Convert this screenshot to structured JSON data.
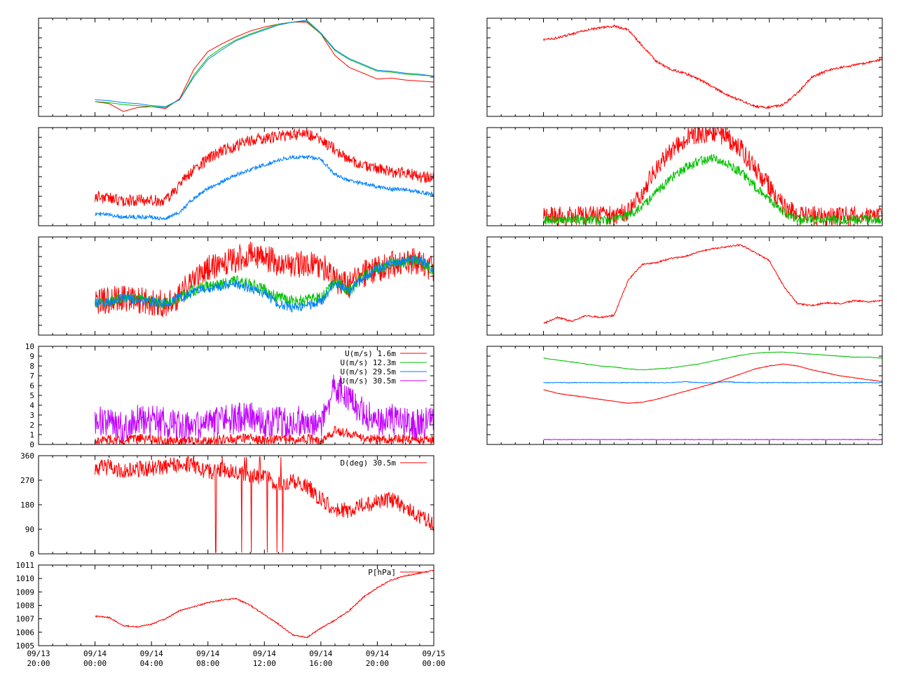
{
  "x_axis": {
    "ticks": [
      {
        "date": "09/13",
        "time": "20:00"
      },
      {
        "date": "09/14",
        "time": "00:00"
      },
      {
        "date": "09/14",
        "time": "04:00"
      },
      {
        "date": "09/14",
        "time": "08:00"
      },
      {
        "date": "09/14",
        "time": "12:00"
      },
      {
        "date": "09/14",
        "time": "16:00"
      },
      {
        "date": "09/14",
        "time": "20:00"
      },
      {
        "date": "09/15",
        "time": "00:00"
      }
    ],
    "range": [
      "09/13 20:00",
      "09/15 00:00"
    ]
  },
  "colors": {
    "red": "#ff0000",
    "green": "#00c000",
    "blue": "#0080ff",
    "purple": "#c000ff"
  },
  "chart_data": [
    {
      "id": "p1",
      "type": "line",
      "title": "",
      "xlabel": "",
      "ylabel": "",
      "x": [
        "09/14 00:00",
        "09/14 01:00",
        "09/14 02:00",
        "09/14 03:00",
        "09/14 04:00",
        "09/14 05:00",
        "09/14 06:00",
        "09/14 07:00",
        "09/14 08:00",
        "09/14 09:00",
        "09/14 10:00",
        "09/14 11:00",
        "09/14 12:00",
        "09/14 13:00",
        "09/14 14:00",
        "09/14 15:00",
        "09/14 16:00",
        "09/14 17:00",
        "09/14 18:00",
        "09/14 19:00",
        "09/14 20:00",
        "09/14 21:00",
        "09/14 22:00",
        "09/14 23:00",
        "09/15 00:00"
      ],
      "ylim": [
        0,
        100
      ],
      "series": [
        {
          "color": "#ff0000",
          "values": [
            15,
            13,
            5,
            9,
            10,
            8,
            18,
            48,
            66,
            74,
            81,
            87,
            91,
            94,
            96,
            96,
            84,
            62,
            50,
            44,
            38,
            39,
            37,
            36,
            35
          ]
        },
        {
          "color": "#00c000",
          "values": [
            15,
            14,
            12,
            11,
            10,
            9,
            17,
            42,
            60,
            70,
            78,
            84,
            89,
            94,
            96,
            97,
            84,
            67,
            58,
            52,
            46,
            45,
            43,
            42,
            41
          ]
        },
        {
          "color": "#0080ff",
          "values": [
            17,
            16,
            14,
            13,
            11,
            10,
            17,
            40,
            58,
            68,
            77,
            83,
            88,
            93,
            96,
            98,
            85,
            68,
            59,
            53,
            47,
            46,
            44,
            43,
            41
          ]
        }
      ]
    },
    {
      "id": "p2",
      "type": "line",
      "title": "",
      "xlabel": "",
      "ylabel": "",
      "x": [
        "09/14 00:00",
        "09/14 01:00",
        "09/14 02:00",
        "09/14 03:00",
        "09/14 04:00",
        "09/14 05:00",
        "09/14 06:00",
        "09/14 07:00",
        "09/14 08:00",
        "09/14 09:00",
        "09/14 10:00",
        "09/14 11:00",
        "09/14 12:00",
        "09/14 13:00",
        "09/14 14:00",
        "09/14 15:00",
        "09/14 16:00",
        "09/14 17:00",
        "09/14 18:00",
        "09/14 19:00",
        "09/14 20:00",
        "09/14 21:00",
        "09/14 22:00",
        "09/14 23:00",
        "09/15 00:00"
      ],
      "ylim": [
        0,
        100
      ],
      "series": [
        {
          "color": "#ff0000",
          "noise": 6,
          "values": [
            30,
            28,
            25,
            26,
            26,
            25,
            42,
            57,
            68,
            76,
            82,
            87,
            89,
            91,
            93,
            93,
            87,
            78,
            66,
            62,
            58,
            54,
            54,
            50,
            48
          ]
        },
        {
          "color": "#0080ff",
          "noise": 2,
          "values": [
            12,
            11,
            9,
            9,
            9,
            7,
            14,
            28,
            38,
            45,
            52,
            57,
            62,
            67,
            70,
            70,
            68,
            52,
            46,
            43,
            40,
            37,
            37,
            34,
            32
          ]
        }
      ]
    },
    {
      "id": "p3",
      "type": "line",
      "title": "",
      "xlabel": "",
      "ylabel": "",
      "x": [
        "09/14 00:00",
        "09/14 01:00",
        "09/14 02:00",
        "09/14 03:00",
        "09/14 04:00",
        "09/14 05:00",
        "09/14 06:00",
        "09/14 07:00",
        "09/14 08:00",
        "09/14 09:00",
        "09/14 10:00",
        "09/14 11:00",
        "09/14 12:00",
        "09/14 13:00",
        "09/14 14:00",
        "09/14 15:00",
        "09/14 16:00",
        "09/14 17:00",
        "09/14 18:00",
        "09/14 19:00",
        "09/14 20:00",
        "09/14 21:00",
        "09/14 22:00",
        "09/14 23:00",
        "09/15 00:00"
      ],
      "ylim": [
        0,
        100
      ],
      "series": [
        {
          "color": "#ff0000",
          "noise": 14,
          "values": [
            32,
            36,
            38,
            36,
            34,
            32,
            40,
            58,
            68,
            72,
            78,
            82,
            80,
            72,
            70,
            74,
            72,
            55,
            50,
            62,
            66,
            72,
            75,
            76,
            66
          ]
        },
        {
          "color": "#00c000",
          "noise": 6,
          "values": [
            32,
            34,
            38,
            36,
            34,
            32,
            38,
            46,
            50,
            52,
            55,
            52,
            46,
            38,
            35,
            36,
            38,
            55,
            45,
            60,
            68,
            73,
            75,
            76,
            66
          ]
        },
        {
          "color": "#0080ff",
          "noise": 5,
          "values": [
            32,
            34,
            38,
            36,
            34,
            32,
            38,
            44,
            48,
            50,
            52,
            48,
            42,
            32,
            28,
            30,
            33,
            54,
            44,
            58,
            68,
            73,
            76,
            77,
            66
          ]
        }
      ]
    },
    {
      "id": "p4",
      "type": "line",
      "title": "",
      "xlabel": "",
      "ylabel": "",
      "x": [
        "09/14 00:00",
        "09/14 01:00",
        "09/14 02:00",
        "09/14 03:00",
        "09/14 04:00",
        "09/14 05:00",
        "09/14 06:00",
        "09/14 07:00",
        "09/14 08:00",
        "09/14 09:00",
        "09/14 10:00",
        "09/14 11:00",
        "09/14 12:00",
        "09/14 13:00",
        "09/14 14:00",
        "09/14 15:00",
        "09/14 16:00",
        "09/14 17:00",
        "09/14 18:00",
        "09/14 19:00",
        "09/14 20:00",
        "09/14 21:00",
        "09/14 22:00",
        "09/14 23:00",
        "09/15 00:00"
      ],
      "ylim": [
        0,
        10
      ],
      "yticks": [
        "0",
        "1",
        "2",
        "3",
        "4",
        "5",
        "6",
        "7",
        "8",
        "9",
        "10"
      ],
      "legend": [
        {
          "label": "U(m/s)  1.6m",
          "color": "#ff0000"
        },
        {
          "label": "U(m/s) 12.3m",
          "color": "#00c000"
        },
        {
          "label": "U(m/s) 29.5m",
          "color": "#0080ff"
        },
        {
          "label": "U(m/s) 30.5m",
          "color": "#c000ff"
        }
      ],
      "series": [
        {
          "color": "#c000ff",
          "noise": 1.6,
          "values": [
            2.4,
            2.2,
            1.6,
            2.6,
            2.4,
            2.2,
            1.8,
            1.6,
            2.2,
            2.4,
            2.6,
            2.8,
            2.0,
            2.4,
            2.2,
            2.6,
            2.0,
            6.0,
            5.0,
            3.2,
            2.4,
            2.6,
            2.2,
            2.0,
            2.4
          ]
        },
        {
          "color": "#ff0000",
          "noise": 0.5,
          "values": [
            0.3,
            0.5,
            0.4,
            0.6,
            0.5,
            0.4,
            0.3,
            0.3,
            0.4,
            0.5,
            0.6,
            0.7,
            0.4,
            0.6,
            0.5,
            0.6,
            0.4,
            1.4,
            1.1,
            0.6,
            0.5,
            0.6,
            0.5,
            0.4,
            0.5
          ]
        }
      ]
    },
    {
      "id": "p5",
      "type": "line",
      "title": "",
      "xlabel": "",
      "ylabel": "",
      "x": [
        "09/14 00:00",
        "09/14 01:00",
        "09/14 02:00",
        "09/14 03:00",
        "09/14 04:00",
        "09/14 05:00",
        "09/14 06:00",
        "09/14 07:00",
        "09/14 08:00",
        "09/14 09:00",
        "09/14 10:00",
        "09/14 11:00",
        "09/14 12:00",
        "09/14 13:00",
        "09/14 14:00",
        "09/14 15:00",
        "09/14 16:00",
        "09/14 17:00",
        "09/14 18:00",
        "09/14 19:00",
        "09/14 20:00",
        "09/14 21:00",
        "09/14 22:00",
        "09/14 23:00",
        "09/15 00:00"
      ],
      "ylim": [
        0,
        360
      ],
      "yticks": [
        "0",
        "90",
        "180",
        "270",
        "360"
      ],
      "legend": [
        {
          "label": "D(deg)  30.5m",
          "color": "#ff0000"
        }
      ],
      "series": [
        {
          "color": "#ff0000",
          "noise": 30,
          "spikes": true,
          "values": [
            310,
            320,
            300,
            310,
            315,
            320,
            330,
            325,
            300,
            310,
            300,
            290,
            280,
            260,
            270,
            250,
            200,
            160,
            160,
            180,
            190,
            200,
            170,
            140,
            110
          ]
        }
      ]
    },
    {
      "id": "p6",
      "type": "line",
      "title": "",
      "xlabel": "",
      "ylabel": "",
      "x": [
        "09/14 00:00",
        "09/14 01:00",
        "09/14 02:00",
        "09/14 03:00",
        "09/14 04:00",
        "09/14 05:00",
        "09/14 06:00",
        "09/14 07:00",
        "09/14 08:00",
        "09/14 09:00",
        "09/14 10:00",
        "09/14 11:00",
        "09/14 12:00",
        "09/14 13:00",
        "09/14 14:00",
        "09/14 15:00",
        "09/14 16:00",
        "09/14 17:00",
        "09/14 18:00",
        "09/14 19:00",
        "09/14 20:00",
        "09/14 21:00",
        "09/14 22:00",
        "09/14 23:00",
        "09/15 00:00"
      ],
      "ylim": [
        1005,
        1011
      ],
      "yticks": [
        "1005",
        "1006",
        "1007",
        "1008",
        "1009",
        "1010",
        "1011"
      ],
      "legend": [
        {
          "label": "P[hPa]",
          "color": "#ff0000"
        }
      ],
      "series": [
        {
          "color": "#ff0000",
          "noise": 0.05,
          "values": [
            1007.2,
            1007.1,
            1006.5,
            1006.4,
            1006.6,
            1007.0,
            1007.6,
            1007.9,
            1008.2,
            1008.4,
            1008.5,
            1008.0,
            1007.3,
            1006.6,
            1005.8,
            1005.6,
            1006.3,
            1006.9,
            1007.6,
            1008.6,
            1009.3,
            1009.9,
            1010.2,
            1010.4,
            1010.6
          ]
        }
      ]
    },
    {
      "id": "p7",
      "type": "line",
      "title": "",
      "xlabel": "",
      "ylabel": "",
      "x": [
        "09/14 00:00",
        "09/14 01:00",
        "09/14 02:00",
        "09/14 03:00",
        "09/14 04:00",
        "09/14 05:00",
        "09/14 06:00",
        "09/14 07:00",
        "09/14 08:00",
        "09/14 09:00",
        "09/14 10:00",
        "09/14 11:00",
        "09/14 12:00",
        "09/14 13:00",
        "09/14 14:00",
        "09/14 15:00",
        "09/14 16:00",
        "09/14 17:00",
        "09/14 18:00",
        "09/14 19:00",
        "09/14 20:00",
        "09/14 21:00",
        "09/14 22:00",
        "09/14 23:00",
        "09/15 00:00"
      ],
      "ylim": [
        0,
        100
      ],
      "series": [
        {
          "color": "#ff0000",
          "noise": 1.2,
          "values": [
            78,
            80,
            84,
            88,
            90,
            92,
            88,
            72,
            56,
            48,
            44,
            38,
            30,
            22,
            16,
            10,
            9,
            12,
            24,
            40,
            46,
            50,
            52,
            55,
            58
          ]
        }
      ]
    },
    {
      "id": "p8",
      "type": "line",
      "title": "",
      "xlabel": "",
      "ylabel": "",
      "x": [
        "09/14 00:00",
        "09/14 01:00",
        "09/14 02:00",
        "09/14 03:00",
        "09/14 04:00",
        "09/14 05:00",
        "09/14 06:00",
        "09/14 07:00",
        "09/14 08:00",
        "09/14 09:00",
        "09/14 10:00",
        "09/14 11:00",
        "09/14 12:00",
        "09/14 13:00",
        "09/14 14:00",
        "09/14 15:00",
        "09/14 16:00",
        "09/14 17:00",
        "09/14 18:00",
        "09/14 19:00",
        "09/14 20:00",
        "09/14 21:00",
        "09/14 22:00",
        "09/14 23:00",
        "09/15 00:00"
      ],
      "ylim": [
        0,
        100
      ],
      "series": [
        {
          "color": "#ff0000",
          "noise": 10,
          "values": [
            10,
            10,
            10,
            10,
            10,
            10,
            14,
            34,
            58,
            76,
            88,
            94,
            94,
            90,
            78,
            58,
            40,
            20,
            10,
            10,
            10,
            10,
            10,
            10,
            10
          ]
        },
        {
          "color": "#00c000",
          "noise": 5,
          "values": [
            6,
            6,
            6,
            6,
            6,
            6,
            10,
            20,
            34,
            48,
            58,
            66,
            68,
            64,
            54,
            40,
            28,
            14,
            6,
            6,
            6,
            6,
            7,
            6,
            6
          ]
        }
      ]
    },
    {
      "id": "p9",
      "type": "line",
      "title": "",
      "xlabel": "",
      "ylabel": "",
      "x": [
        "09/14 00:00",
        "09/14 01:00",
        "09/14 02:00",
        "09/14 03:00",
        "09/14 04:00",
        "09/14 05:00",
        "09/14 06:00",
        "09/14 07:00",
        "09/14 08:00",
        "09/14 09:00",
        "09/14 10:00",
        "09/14 11:00",
        "09/14 12:00",
        "09/14 13:00",
        "09/14 14:00",
        "09/14 15:00",
        "09/14 16:00",
        "09/14 17:00",
        "09/14 18:00",
        "09/14 19:00",
        "09/14 20:00",
        "09/14 21:00",
        "09/14 22:00",
        "09/14 23:00",
        "09/15 00:00"
      ],
      "ylim": [
        0,
        100
      ],
      "series": [
        {
          "color": "#ff0000",
          "noise": 0.8,
          "values": [
            12,
            18,
            14,
            20,
            18,
            20,
            56,
            72,
            74,
            78,
            80,
            85,
            88,
            90,
            92,
            84,
            76,
            50,
            32,
            30,
            33,
            32,
            35,
            34,
            35
          ]
        }
      ]
    },
    {
      "id": "p10",
      "type": "line",
      "title": "",
      "xlabel": "",
      "ylabel": "",
      "x": [
        "09/14 00:00",
        "09/14 01:00",
        "09/14 02:00",
        "09/14 03:00",
        "09/14 04:00",
        "09/14 05:00",
        "09/14 06:00",
        "09/14 07:00",
        "09/14 08:00",
        "09/14 09:00",
        "09/14 10:00",
        "09/14 11:00",
        "09/14 12:00",
        "09/14 13:00",
        "09/14 14:00",
        "09/14 15:00",
        "09/14 16:00",
        "09/14 17:00",
        "09/14 18:00",
        "09/14 19:00",
        "09/14 20:00",
        "09/14 21:00",
        "09/14 22:00",
        "09/14 23:00",
        "09/15 00:00"
      ],
      "ylim": [
        0,
        100
      ],
      "series": [
        {
          "color": "#00c000",
          "noise": 0.3,
          "values": [
            88,
            86,
            84,
            82,
            80,
            79,
            77,
            76,
            77,
            78,
            80,
            82,
            85,
            88,
            91,
            93,
            94,
            94,
            93,
            92,
            91,
            90,
            89,
            89,
            88
          ]
        },
        {
          "color": "#0080ff",
          "noise": 0.4,
          "values": [
            63,
            63,
            63,
            63,
            63,
            63,
            63,
            63,
            63,
            63,
            64,
            63,
            63,
            64,
            63,
            63,
            63,
            63,
            63,
            63,
            63,
            63,
            63,
            63,
            63
          ]
        },
        {
          "color": "#ff0000",
          "noise": 0.3,
          "values": [
            56,
            52,
            50,
            48,
            46,
            44,
            42,
            43,
            46,
            50,
            54,
            58,
            62,
            67,
            72,
            77,
            80,
            82,
            80,
            76,
            73,
            70,
            68,
            66,
            64
          ]
        },
        {
          "color": "#c000ff",
          "noise": 0.3,
          "values": [
            5,
            5,
            5,
            5,
            5,
            5,
            5,
            5,
            5,
            5,
            5,
            5,
            5,
            5,
            5,
            5,
            5,
            5,
            5,
            5,
            5,
            5,
            5,
            5,
            5
          ]
        }
      ]
    }
  ]
}
